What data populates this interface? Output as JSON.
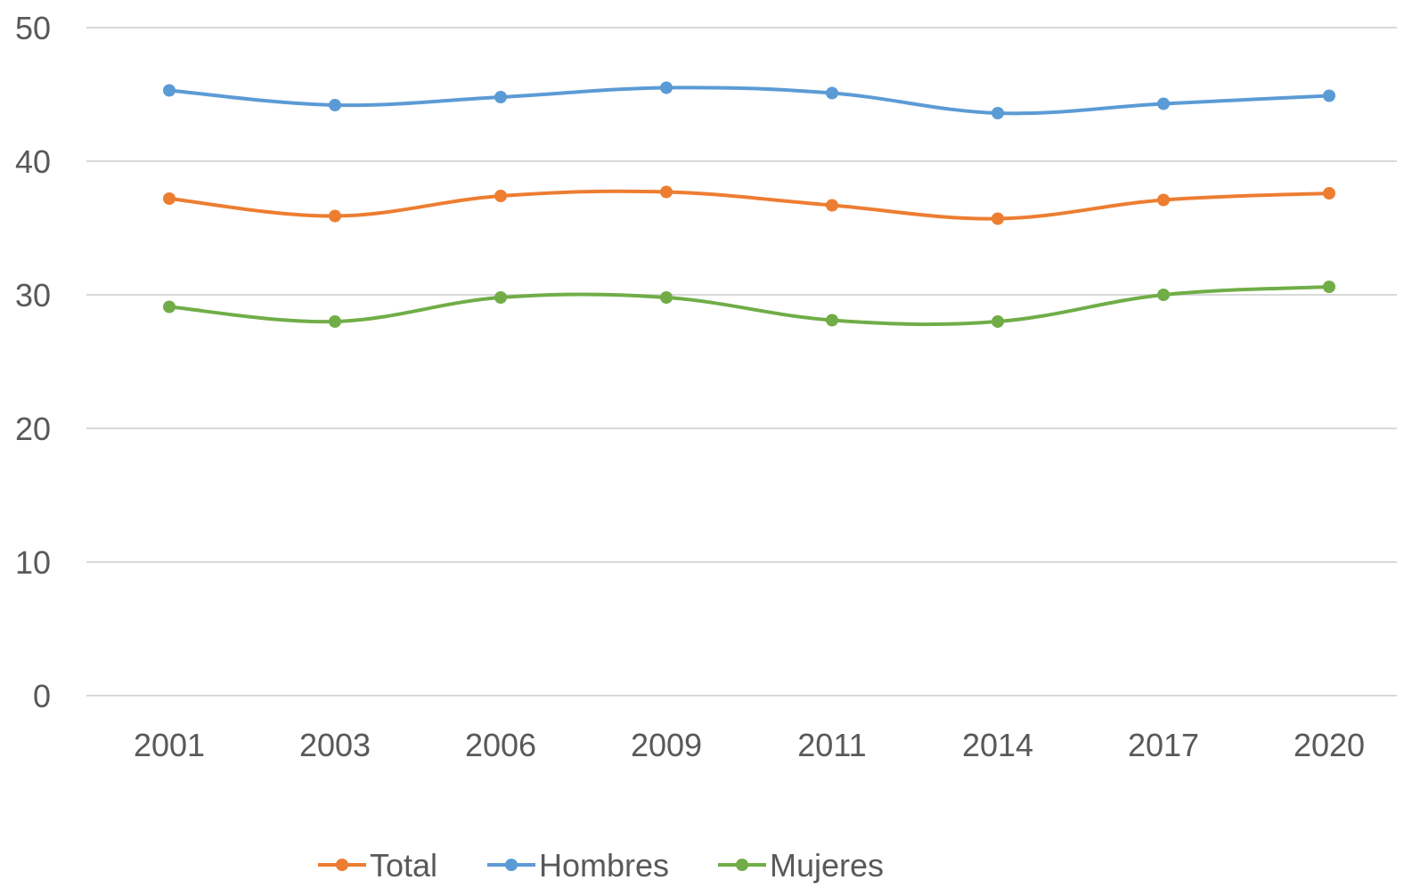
{
  "chart_data": {
    "type": "line",
    "categories": [
      "2001",
      "2003",
      "2006",
      "2009",
      "2011",
      "2014",
      "2017",
      "2020"
    ],
    "ylim": [
      0,
      50
    ],
    "yticks": [
      0,
      10,
      20,
      30,
      40,
      50
    ],
    "grid": true,
    "legend_position": "bottom",
    "smooth": true,
    "series": [
      {
        "name": "Total",
        "color": "#ed7d31",
        "values": [
          37.2,
          35.9,
          37.4,
          37.7,
          36.7,
          35.7,
          37.1,
          37.6
        ]
      },
      {
        "name": "Hombres",
        "color": "#5b9bd5",
        "values": [
          45.3,
          44.2,
          44.8,
          45.5,
          45.1,
          43.6,
          44.3,
          44.9
        ]
      },
      {
        "name": "Mujeres",
        "color": "#70ad47",
        "values": [
          29.1,
          28.0,
          29.8,
          29.8,
          28.1,
          28.0,
          30.0,
          30.6
        ]
      }
    ]
  }
}
